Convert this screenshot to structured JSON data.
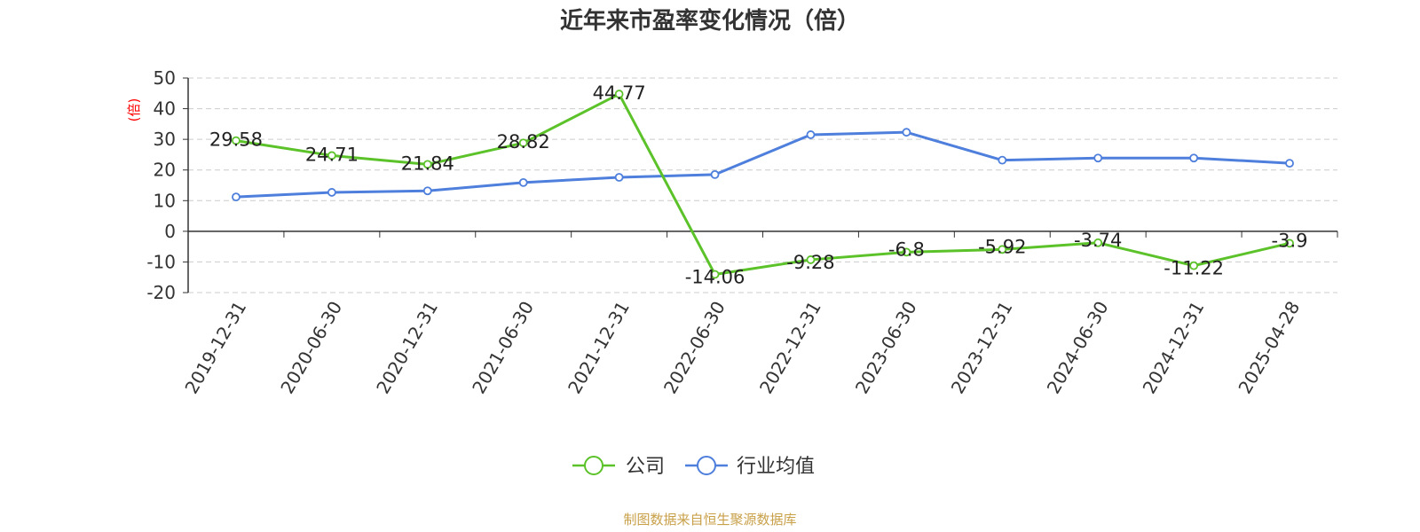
{
  "chart_data": {
    "type": "line",
    "title": "近年来市盈率变化情况（倍）",
    "ylabel": "(倍)",
    "xlabel": "",
    "ylim": [
      -20,
      50
    ],
    "yticks": [
      50,
      40,
      30,
      20,
      10,
      0,
      -10,
      -20
    ],
    "grid": true,
    "legend_position": "bottom",
    "categories": [
      "2019-12-31",
      "2020-06-30",
      "2020-12-31",
      "2021-06-30",
      "2021-12-31",
      "2022-06-30",
      "2022-12-31",
      "2023-06-30",
      "2023-12-31",
      "2024-06-30",
      "2024-12-31",
      "2025-04-28"
    ],
    "series": [
      {
        "name": "公司",
        "color": "#5cc22a",
        "values": [
          29.58,
          24.71,
          21.84,
          28.82,
          44.77,
          -14.06,
          -9.28,
          -6.8,
          -5.92,
          -3.74,
          -11.22,
          -3.9
        ],
        "labels": [
          "29.58",
          "24.71",
          "21.84",
          "28.82",
          "44.77",
          "-14.06",
          "-9.28",
          "-6.8",
          "-5.92",
          "-3.74",
          "-11.22",
          "-3.9"
        ]
      },
      {
        "name": "行业均值",
        "color": "#4e7fdc",
        "values": [
          11.2,
          12.7,
          13.2,
          15.9,
          17.6,
          18.5,
          31.5,
          32.3,
          23.2,
          23.9,
          23.9,
          22.2
        ]
      }
    ],
    "source": "制图数据来自恒生聚源数据库"
  }
}
